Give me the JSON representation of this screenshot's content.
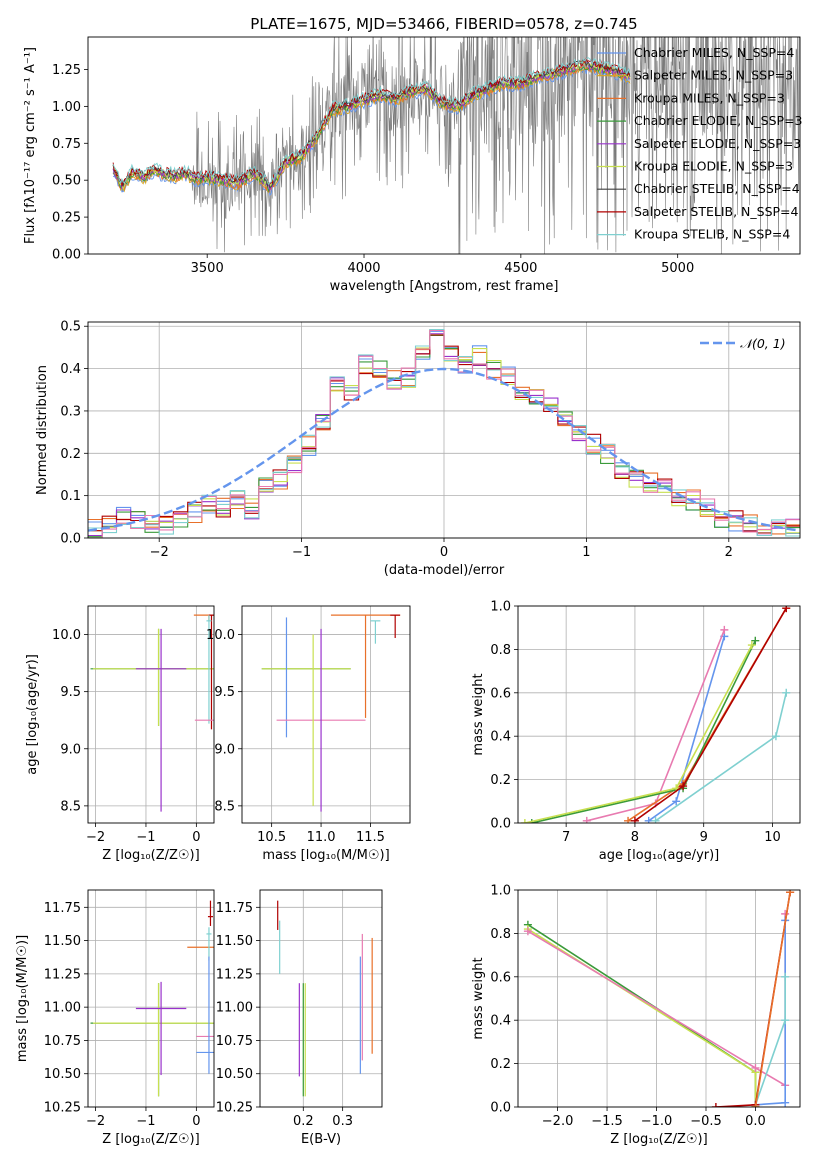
{
  "chart_data": [
    {
      "id": "spectrum",
      "type": "line",
      "title": "PLATE=1675, MJD=53466, FIBERID=0578, z=0.745",
      "xlabel": "wavelength [Angstrom, rest frame]",
      "ylabel": "Flux [f_λ 10^-17 erg cm^-2 s^-1 A^-1]",
      "xlim": [
        3120,
        5390
      ],
      "ylim": [
        0,
        1.47
      ],
      "xticks": [
        3500,
        4000,
        4500,
        5000
      ],
      "xtick_labels": [
        "3500",
        "4000",
        "4500",
        "5000"
      ],
      "yticks": [
        0,
        0.25,
        0.5,
        0.75,
        1.0,
        1.25
      ],
      "ytick_labels": [
        "0.00",
        "0.25",
        "0.50",
        "0.75",
        "1.00",
        "1.25"
      ],
      "grid": false,
      "legend_position": "right",
      "series": [
        {
          "name": "Chabrier MILES, N_SSP=4",
          "color": "#6495ED"
        },
        {
          "name": "Salpeter MILES, N_SSP=3",
          "color": "#DAA520"
        },
        {
          "name": "Kroupa MILES, N_SSP=3",
          "color": "#E8702A"
        },
        {
          "name": "Chabrier ELODIE, N_SSP=3",
          "color": "#3A9A3A"
        },
        {
          "name": "Salpeter ELODIE, N_SSP=3",
          "color": "#9932CC"
        },
        {
          "name": "Kroupa ELODIE, N_SSP=3",
          "color": "#C8E050"
        },
        {
          "name": "Chabrier STELIB, N_SSP=4",
          "color": "#404040"
        },
        {
          "name": "Salpeter STELIB, N_SSP=4",
          "color": "#B00000"
        },
        {
          "name": "Kroupa STELIB, N_SSP=4",
          "color": "#7FD0D0"
        }
      ],
      "model_points": [
        [
          3200,
          0.58
        ],
        [
          3230,
          0.45
        ],
        [
          3260,
          0.55
        ],
        [
          3300,
          0.52
        ],
        [
          3330,
          0.57
        ],
        [
          3360,
          0.54
        ],
        [
          3400,
          0.53
        ],
        [
          3430,
          0.55
        ],
        [
          3460,
          0.51
        ],
        [
          3500,
          0.52
        ],
        [
          3550,
          0.5
        ],
        [
          3600,
          0.48
        ],
        [
          3650,
          0.55
        ],
        [
          3700,
          0.45
        ],
        [
          3750,
          0.62
        ],
        [
          3800,
          0.66
        ],
        [
          3850,
          0.8
        ],
        [
          3900,
          0.98
        ],
        [
          3950,
          1.0
        ],
        [
          4000,
          1.04
        ],
        [
          4050,
          1.08
        ],
        [
          4100,
          1.05
        ],
        [
          4150,
          1.1
        ],
        [
          4200,
          1.12
        ],
        [
          4250,
          1.02
        ],
        [
          4300,
          1.0
        ],
        [
          4350,
          1.08
        ],
        [
          4400,
          1.12
        ],
        [
          4450,
          1.16
        ],
        [
          4500,
          1.15
        ],
        [
          4550,
          1.2
        ],
        [
          4600,
          1.22
        ],
        [
          4650,
          1.25
        ],
        [
          4700,
          1.28
        ],
        [
          4750,
          1.26
        ],
        [
          4800,
          1.24
        ],
        [
          4850,
          1.2
        ]
      ],
      "data_range": [
        3200,
        5390
      ]
    },
    {
      "id": "residuals",
      "type": "histogram",
      "xlabel": "(data-model)/error",
      "ylabel": "Normed distribution",
      "xlim": [
        -2.5,
        2.5
      ],
      "ylim": [
        0,
        0.51
      ],
      "xticks": [
        -2,
        -1,
        0,
        1,
        2
      ],
      "xtick_labels": [
        "−2",
        "−1",
        "0",
        "1",
        "2"
      ],
      "yticks": [
        0,
        0.1,
        0.2,
        0.3,
        0.4,
        0.5
      ],
      "ytick_labels": [
        "0.0",
        "0.1",
        "0.2",
        "0.3",
        "0.4",
        "0.5"
      ],
      "grid": true,
      "legend_position": "top-right",
      "legend_label": "𝒩(0, 1)",
      "gaussian_color": "#6495ED",
      "bin_width": 0.1,
      "bin_start": -2.5,
      "base_values": [
        0.02,
        0.03,
        0.05,
        0.04,
        0.03,
        0.03,
        0.04,
        0.06,
        0.08,
        0.07,
        0.09,
        0.07,
        0.12,
        0.14,
        0.17,
        0.22,
        0.27,
        0.36,
        0.34,
        0.41,
        0.4,
        0.37,
        0.38,
        0.43,
        0.47,
        0.44,
        0.41,
        0.43,
        0.4,
        0.38,
        0.35,
        0.33,
        0.31,
        0.28,
        0.25,
        0.22,
        0.2,
        0.16,
        0.14,
        0.13,
        0.12,
        0.1,
        0.09,
        0.07,
        0.05,
        0.04,
        0.03,
        0.03,
        0.02,
        0.02
      ]
    },
    {
      "id": "age-vs-Z",
      "type": "errorbar",
      "xlabel": "Z [log₁₀(Z/Z☉)]",
      "ylabel": "age  [log₁₀(age/yr)]",
      "xlim": [
        -2.15,
        0.35
      ],
      "ylim": [
        8.35,
        10.25
      ],
      "xticks": [
        -2,
        -1,
        0
      ],
      "xtick_labels": [
        "−2",
        "−1",
        "0"
      ],
      "yticks": [
        8.5,
        9.0,
        9.5,
        10.0
      ],
      "ytick_labels": [
        "8.5",
        "9.0",
        "9.5",
        "10.0"
      ],
      "grid": true,
      "points": [
        {
          "x": -0.75,
          "y": 9.7,
          "xerr": 1.35,
          "yerr": [
            0.5,
            0.35
          ],
          "color": "#3A9A3A"
        },
        {
          "x": -0.75,
          "y": 9.7,
          "xerr": 1.3,
          "yerr": [
            0.5,
            0.35
          ],
          "color": "#C8E050"
        },
        {
          "x": -0.7,
          "y": 9.7,
          "xerr": 0.5,
          "yerr": [
            1.25,
            0.35
          ],
          "color": "#9932CC"
        },
        {
          "x": 0.25,
          "y": 10.17,
          "xerr": 0.3,
          "yerr": [
            0.05,
            0.0
          ],
          "color": "#E8702A"
        },
        {
          "x": 0.3,
          "y": 10.17,
          "xerr": 0.05,
          "yerr": [
            1.0,
            0.0
          ],
          "color": "#B00000"
        },
        {
          "x": 0.25,
          "y": 10.12,
          "xerr": 0.05,
          "yerr": [
            0.9,
            0.05
          ],
          "color": "#7FD0D0"
        },
        {
          "x": 0.25,
          "y": 9.25,
          "xerr": 0.28,
          "yerr": [
            0.0,
            0.0
          ],
          "color": "#E87AB0"
        }
      ]
    },
    {
      "id": "age-vs-mass",
      "type": "errorbar",
      "xlabel": "mass [log₁₀(M/M☉)]",
      "ylabel": "",
      "xlim": [
        10.2,
        11.9
      ],
      "ylim": [
        8.35,
        10.25
      ],
      "xticks": [
        10.5,
        11.0,
        11.5
      ],
      "xtick_labels": [
        "10.5",
        "11.0",
        "11.5"
      ],
      "yticks": [
        8.5,
        9.0,
        9.5,
        10.0
      ],
      "ytick_labels": [
        "8.5",
        "9.0",
        "9.5",
        "10.0"
      ],
      "grid": true,
      "points": [
        {
          "x": 10.85,
          "y": 9.7,
          "xerr": 0.45,
          "yerr": [
            0.0,
            0.0
          ],
          "color": "#3A9A3A"
        },
        {
          "x": 10.85,
          "y": 9.7,
          "xerr": 0.45,
          "yerr": [
            0.0,
            0.0
          ],
          "color": "#C8E050"
        },
        {
          "x": 10.65,
          "y": 9.25,
          "xerr": 0.0,
          "yerr": [
            0.15,
            0.9
          ],
          "color": "#6495ED"
        },
        {
          "x": 11.0,
          "y": 9.25,
          "xerr": 0.45,
          "yerr": [
            0.0,
            0.0
          ],
          "color": "#E87AB0"
        },
        {
          "x": 11.0,
          "y": 9.25,
          "xerr": 0.0,
          "yerr": [
            0.8,
            0.8
          ],
          "color": "#9932CC"
        },
        {
          "x": 10.92,
          "y": 9.25,
          "xerr": 0.0,
          "yerr": [
            0.75,
            0.75
          ],
          "color": "#C8E050"
        },
        {
          "x": 11.45,
          "y": 10.17,
          "xerr": 0.35,
          "yerr": [
            0.9,
            0.0
          ],
          "color": "#E8702A"
        },
        {
          "x": 11.75,
          "y": 10.17,
          "xerr": 0.05,
          "yerr": [
            0.2,
            0.0
          ],
          "color": "#B00000"
        },
        {
          "x": 11.55,
          "y": 10.12,
          "xerr": 0.05,
          "yerr": [
            0.2,
            0.0
          ],
          "color": "#7FD0D0"
        }
      ]
    },
    {
      "id": "weight-vs-age",
      "type": "line",
      "xlabel": "age  [log₁₀(age/yr)]",
      "ylabel": "mass weight",
      "xlim": [
        6.3,
        10.4
      ],
      "ylim": [
        0,
        1.0
      ],
      "xticks": [
        7,
        8,
        9,
        10
      ],
      "xtick_labels": [
        "7",
        "8",
        "9",
        "10"
      ],
      "yticks": [
        0,
        0.2,
        0.4,
        0.6,
        0.8,
        1.0
      ],
      "ytick_labels": [
        "0.0",
        "0.2",
        "0.4",
        "0.6",
        "0.8",
        "1.0"
      ],
      "grid": true,
      "series": [
        {
          "color": "#6495ED",
          "x": [
            8.2,
            8.6,
            9.3
          ],
          "y": [
            0.01,
            0.1,
            0.86
          ]
        },
        {
          "color": "#E87AB0",
          "x": [
            7.3,
            8.3,
            9.3
          ],
          "y": [
            0.01,
            0.09,
            0.89
          ]
        },
        {
          "color": "#E8702A",
          "x": [
            7.9,
            8.7,
            10.2
          ],
          "y": [
            0.01,
            0.18,
            0.99
          ]
        },
        {
          "color": "#3A9A3A",
          "x": [
            6.5,
            8.7,
            9.75
          ],
          "y": [
            0.0,
            0.16,
            0.84
          ]
        },
        {
          "color": "#C8E050",
          "x": [
            6.4,
            8.6,
            9.7
          ],
          "y": [
            0.0,
            0.16,
            0.82
          ]
        },
        {
          "color": "#7FD0D0",
          "x": [
            8.3,
            10.05,
            10.2
          ],
          "y": [
            0.01,
            0.4,
            0.6
          ]
        },
        {
          "color": "#B00000",
          "x": [
            8.0,
            8.7,
            10.2
          ],
          "y": [
            0.01,
            0.17,
            0.99
          ]
        }
      ]
    },
    {
      "id": "mass-vs-Z",
      "type": "errorbar",
      "xlabel": "Z [log₁₀(Z/Z☉)]",
      "ylabel": "mass [log₁₀(M/M☉)]",
      "xlim": [
        -2.15,
        0.35
      ],
      "ylim": [
        10.25,
        11.88
      ],
      "xticks": [
        -2,
        -1,
        0
      ],
      "xtick_labels": [
        "−2",
        "−1",
        "0"
      ],
      "yticks": [
        10.25,
        10.5,
        10.75,
        11.0,
        11.25,
        11.5,
        11.75
      ],
      "ytick_labels": [
        "10.25",
        "10.50",
        "10.75",
        "11.00",
        "11.25",
        "11.50",
        "11.75"
      ],
      "grid": true,
      "points": [
        {
          "x": -0.75,
          "y": 10.88,
          "xerr": 1.35,
          "yerr": [
            0.55,
            0.3
          ],
          "color": "#3A9A3A"
        },
        {
          "x": -0.75,
          "y": 10.88,
          "xerr": 1.3,
          "yerr": [
            0.55,
            0.3
          ],
          "color": "#C8E050"
        },
        {
          "x": -0.7,
          "y": 10.99,
          "xerr": 0.5,
          "yerr": [
            0.5,
            0.2
          ],
          "color": "#9932CC"
        },
        {
          "x": 0.12,
          "y": 11.45,
          "xerr": 0.3,
          "yerr": [
            0.0,
            0.0
          ],
          "color": "#E8702A"
        },
        {
          "x": 0.28,
          "y": 11.68,
          "xerr": 0.05,
          "yerr": [
            0.07,
            0.12
          ],
          "color": "#B00000"
        },
        {
          "x": 0.25,
          "y": 11.55,
          "xerr": 0.05,
          "yerr": [
            0.2,
            0.05
          ],
          "color": "#7FD0D0"
        },
        {
          "x": 0.25,
          "y": 10.78,
          "xerr": 0.25,
          "yerr": [
            0.0,
            0.0
          ],
          "color": "#E87AB0"
        },
        {
          "x": 0.25,
          "y": 10.66,
          "xerr": 0.25,
          "yerr": [
            0.16,
            0.72
          ],
          "color": "#6495ED"
        }
      ]
    },
    {
      "id": "mass-vs-EBV",
      "type": "errorbar",
      "xlabel": "E(B-V)",
      "ylabel": "",
      "xlim": [
        0.09,
        0.4
      ],
      "ylim": [
        10.25,
        11.88
      ],
      "xticks": [
        0.2,
        0.3
      ],
      "xtick_labels": [
        "0.2",
        "0.3"
      ],
      "yticks": [
        10.25,
        10.5,
        10.75,
        11.0,
        11.25,
        11.5,
        11.75
      ],
      "ytick_labels": [
        "10.25",
        "10.50",
        "10.75",
        "11.00",
        "11.25",
        "11.50",
        "11.75"
      ],
      "grid": true,
      "points": [
        {
          "x": 0.135,
          "y": 11.68,
          "xerr": 0,
          "yerr": [
            0.1,
            0.12
          ],
          "color": "#B00000"
        },
        {
          "x": 0.14,
          "y": 11.45,
          "xerr": 0,
          "yerr": [
            0.2,
            0.2
          ],
          "color": "#7FD0D0"
        },
        {
          "x": 0.19,
          "y": 10.88,
          "xerr": 0,
          "yerr": [
            0.4,
            0.3
          ],
          "color": "#9932CC"
        },
        {
          "x": 0.2,
          "y": 10.88,
          "xerr": 0,
          "yerr": [
            0.55,
            0.3
          ],
          "color": "#3A9A3A"
        },
        {
          "x": 0.205,
          "y": 10.88,
          "xerr": 0,
          "yerr": [
            0.55,
            0.3
          ],
          "color": "#C8E050"
        },
        {
          "x": 0.345,
          "y": 10.95,
          "xerr": 0,
          "yerr": [
            0.45,
            0.43
          ],
          "color": "#6495ED"
        },
        {
          "x": 0.35,
          "y": 11.05,
          "xerr": 0,
          "yerr": [
            0.45,
            0.5
          ],
          "color": "#E87AB0"
        },
        {
          "x": 0.375,
          "y": 11.1,
          "xerr": 0,
          "yerr": [
            0.45,
            0.42
          ],
          "color": "#E8702A"
        }
      ]
    },
    {
      "id": "weight-vs-Z",
      "type": "line",
      "xlabel": "Z [log₁₀(Z/Z☉)]",
      "ylabel": "mass weight",
      "xlim": [
        -2.4,
        0.45
      ],
      "ylim": [
        0,
        1.0
      ],
      "xticks": [
        -2.0,
        -1.5,
        -1.0,
        -0.5,
        0.0
      ],
      "xtick_labels": [
        "−2.0",
        "−1.5",
        "−1.0",
        "−0.5",
        "0.0"
      ],
      "yticks": [
        0,
        0.2,
        0.4,
        0.6,
        0.8,
        1.0
      ],
      "ytick_labels": [
        "0.0",
        "0.2",
        "0.4",
        "0.6",
        "0.8",
        "1.0"
      ],
      "grid": true,
      "series": [
        {
          "color": "#3A9A3A",
          "x": [
            -2.3,
            0.0,
            0.0
          ],
          "y": [
            0.84,
            0.16,
            0.0
          ]
        },
        {
          "color": "#C8E050",
          "x": [
            -2.3,
            0.0,
            0.0
          ],
          "y": [
            0.82,
            0.16,
            0.0
          ]
        },
        {
          "color": "#E87AB0",
          "x": [
            -2.3,
            0.0,
            0.3,
            0.3
          ],
          "y": [
            0.81,
            0.18,
            0.1,
            0.89
          ]
        },
        {
          "color": "#6495ED",
          "x": [
            0.0,
            0.3,
            0.3
          ],
          "y": [
            0.01,
            0.02,
            0.86
          ]
        },
        {
          "color": "#7FD0D0",
          "x": [
            0.0,
            0.3,
            0.3
          ],
          "y": [
            0.01,
            0.4,
            0.6
          ]
        },
        {
          "color": "#B00000",
          "x": [
            -0.4,
            0.0,
            0.35
          ],
          "y": [
            0.0,
            0.01,
            0.99
          ]
        },
        {
          "color": "#E8702A",
          "x": [
            0.0,
            0.35
          ],
          "y": [
            0.0,
            0.99
          ]
        }
      ]
    }
  ]
}
